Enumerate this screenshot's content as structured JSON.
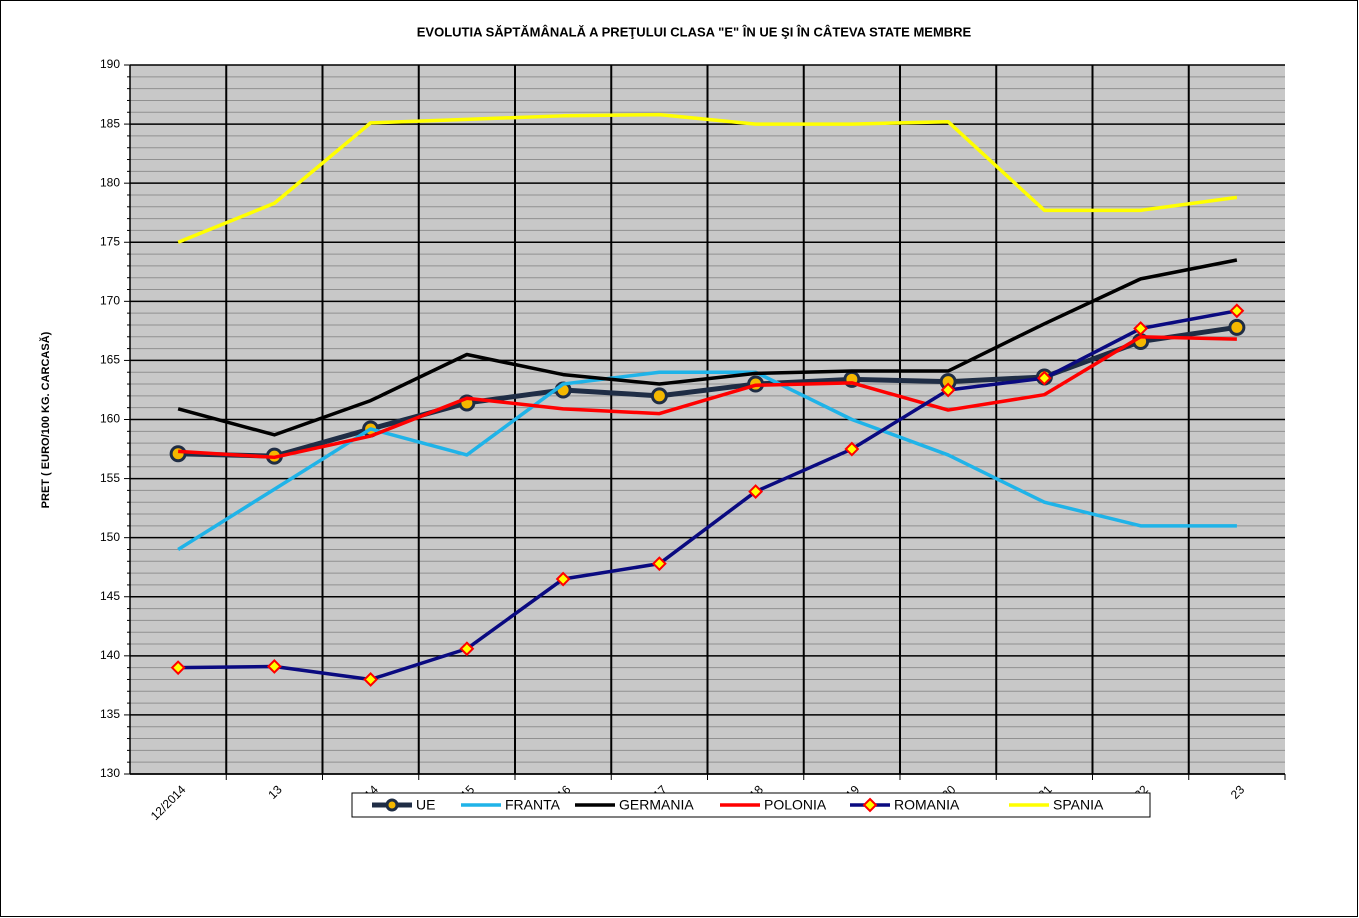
{
  "chart_data": {
    "type": "line",
    "title": "EVOLUTIA SĂPTĂMÂNALĂ  A PREŢULUI CLASA \"E\"  ÎN  UE ŞI ÎN  CÂTEVA STATE MEMBRE",
    "y_label": "PRET ( EURO/100 KG. CARCASĂ)",
    "categories": [
      "12/2014",
      "13",
      "14",
      "15",
      "16",
      "17",
      "18",
      "19",
      "20",
      "21",
      "22",
      "23"
    ],
    "ylim": [
      130,
      190
    ],
    "yticks": [
      130,
      135,
      140,
      145,
      150,
      155,
      160,
      165,
      170,
      175,
      180,
      185,
      190
    ],
    "minor_yticks": [
      131,
      132,
      133,
      134,
      136,
      137,
      138,
      139,
      141,
      142,
      143,
      144,
      146,
      147,
      148,
      149,
      151,
      152,
      153,
      154,
      156,
      157,
      158,
      159,
      161,
      162,
      163,
      164,
      166,
      167,
      168,
      169,
      171,
      172,
      173,
      174,
      176,
      177,
      178,
      179,
      181,
      182,
      183,
      184,
      186,
      187,
      188,
      189
    ],
    "grid": true,
    "legend": "bottom",
    "series": [
      {
        "name": "UE",
        "color": "#1f2d45",
        "marker": "circle",
        "marker_color": "#f5b800",
        "values": [
          157.1,
          156.9,
          159.2,
          161.4,
          162.5,
          162.0,
          163.0,
          163.4,
          163.2,
          163.6,
          166.6,
          167.8
        ]
      },
      {
        "name": "FRANTA",
        "color": "#1fb3e8",
        "values": [
          149.0,
          154.1,
          159.2,
          157.0,
          163.0,
          164.0,
          164.0,
          160.0,
          157.0,
          153.0,
          151.0,
          151.0
        ]
      },
      {
        "name": "GERMANIA",
        "color": "#000000",
        "values": [
          160.9,
          158.7,
          161.6,
          165.5,
          163.8,
          163.0,
          163.9,
          164.1,
          164.1,
          168.1,
          171.9,
          173.5
        ]
      },
      {
        "name": "POLONIA",
        "color": "#ff0000",
        "values": [
          157.3,
          156.8,
          158.6,
          161.8,
          160.9,
          160.5,
          162.9,
          163.1,
          160.8,
          162.1,
          167.0,
          166.8
        ]
      },
      {
        "name": "ROMANIA",
        "color": "#0a0a80",
        "marker": "diamond",
        "marker_color": "#ffff00",
        "values": [
          139.0,
          139.1,
          138.0,
          140.6,
          146.5,
          147.8,
          153.9,
          157.5,
          162.5,
          163.5,
          167.7,
          169.2
        ]
      },
      {
        "name": "SPANIA",
        "color": "#ffff00",
        "values": [
          175.0,
          178.3,
          185.1,
          185.4,
          185.7,
          185.8,
          185.0,
          185.0,
          185.2,
          177.7,
          177.7,
          178.8
        ]
      }
    ]
  }
}
